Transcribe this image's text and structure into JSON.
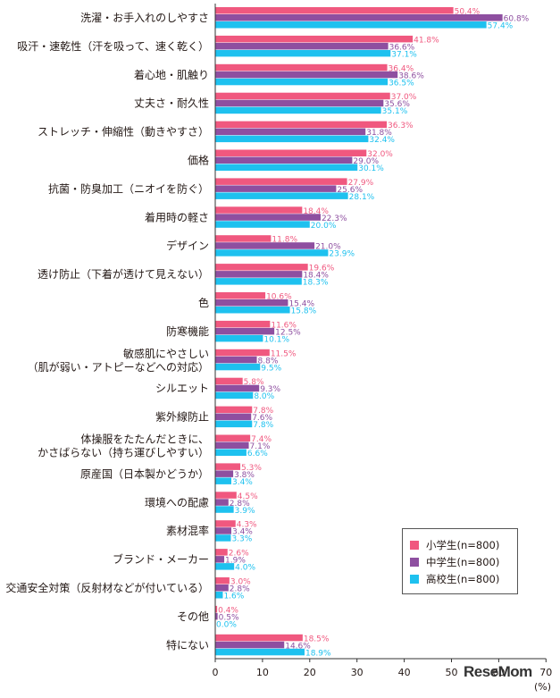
{
  "chart_data": {
    "type": "bar",
    "orientation": "horizontal",
    "categories": [
      [
        "洗濯・お手入れのしやすさ"
      ],
      [
        "吸汗・速乾性（汗を吸って、速く乾く）"
      ],
      [
        "着心地・肌触り"
      ],
      [
        "丈夫さ・耐久性"
      ],
      [
        "ストレッチ・伸縮性（動きやすさ）"
      ],
      [
        "価格"
      ],
      [
        "抗菌・防臭加工（ニオイを防ぐ）"
      ],
      [
        "着用時の軽さ"
      ],
      [
        "デザイン"
      ],
      [
        "透け防止（下着が透けて見えない）"
      ],
      [
        "色"
      ],
      [
        "防寒機能"
      ],
      [
        "敏感肌にやさしい",
        "（肌が弱い・アトピーなどへの対応）"
      ],
      [
        "シルエット"
      ],
      [
        "紫外線防止"
      ],
      [
        "体操服をたたんだときに、",
        "かさばらない（持ち運びしやすい）"
      ],
      [
        "原産国（日本製かどうか）"
      ],
      [
        "環境への配慮"
      ],
      [
        "素材混率"
      ],
      [
        "ブランド・メーカー"
      ],
      [
        "交通安全対策（反射材などが付いている）"
      ],
      [
        "その他"
      ],
      [
        "特にない"
      ]
    ],
    "series": [
      {
        "name": "小学生(n=800)",
        "color": "#f0587f",
        "values": [
          50.4,
          41.8,
          36.4,
          37.0,
          36.3,
          32.0,
          27.9,
          18.4,
          11.8,
          19.6,
          10.6,
          11.6,
          11.5,
          5.8,
          7.8,
          7.4,
          5.3,
          4.5,
          4.3,
          2.6,
          3.0,
          0.4,
          18.5
        ]
      },
      {
        "name": "中学生(n=800)",
        "color": "#8e4fa0",
        "values": [
          60.8,
          36.6,
          38.6,
          35.6,
          31.8,
          29.0,
          25.6,
          22.3,
          21.0,
          18.4,
          15.4,
          12.5,
          8.8,
          9.3,
          7.6,
          7.1,
          3.8,
          2.8,
          3.4,
          1.9,
          2.8,
          0.5,
          14.6
        ]
      },
      {
        "name": "高校生(n=800)",
        "color": "#1ec1ef",
        "values": [
          57.4,
          37.1,
          36.5,
          35.1,
          32.4,
          30.1,
          28.1,
          20.0,
          23.9,
          18.3,
          15.8,
          10.1,
          9.5,
          8.0,
          7.8,
          6.6,
          3.4,
          3.9,
          3.3,
          4.0,
          1.6,
          0.0,
          18.9
        ]
      }
    ],
    "xlim": [
      0,
      70
    ],
    "xticks": [
      "0",
      "10",
      "20",
      "30",
      "40",
      "50",
      "60",
      "70"
    ],
    "unit": "(%)",
    "legend_position": "bottom-right",
    "grid": false
  },
  "watermark": "ReseMom"
}
